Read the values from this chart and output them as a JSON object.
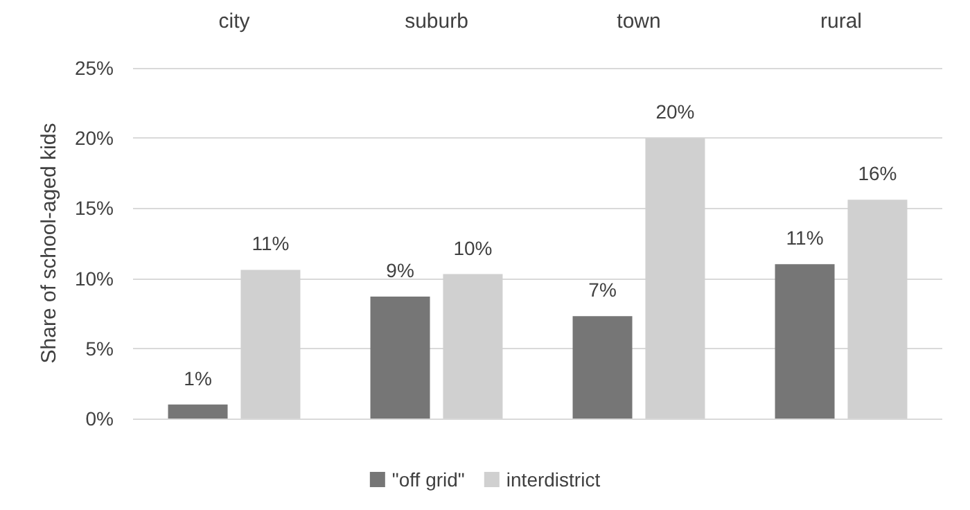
{
  "chart_data": {
    "type": "bar",
    "ylabel": "Share of school-aged kids",
    "categories": [
      "city",
      "suburb",
      "town",
      "rural"
    ],
    "series": [
      {
        "name": "\"off grid\"",
        "color": "#767676",
        "values": [
          1.0,
          8.7,
          7.3,
          11.0
        ],
        "value_labels": [
          "1%",
          "9%",
          "7%",
          "11%"
        ]
      },
      {
        "name": "interdistrict",
        "color": "#d0d0d0",
        "values": [
          10.6,
          10.3,
          20.0,
          15.6
        ],
        "value_labels": [
          "11%",
          "10%",
          "20%",
          "16%"
        ]
      }
    ],
    "ylim": [
      0,
      25
    ],
    "yticks": [
      {
        "value": 0,
        "label": "0%"
      },
      {
        "value": 5,
        "label": "5%"
      },
      {
        "value": 10,
        "label": "10%"
      },
      {
        "value": 15,
        "label": "15%"
      },
      {
        "value": 20,
        "label": "20%"
      },
      {
        "value": 25,
        "label": "25%"
      }
    ],
    "grid": "y",
    "legend": "bottom"
  }
}
